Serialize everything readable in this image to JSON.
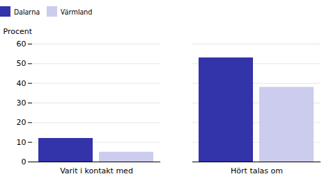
{
  "chart_data": {
    "type": "bar",
    "categories": [
      "Varit i kontakt med",
      "Hört talas om"
    ],
    "series": [
      {
        "name": "Dalarna",
        "color": "#3333AA",
        "values": [
          12,
          53
        ]
      },
      {
        "name": "Värmland",
        "color": "#CCCCEE",
        "values": [
          5,
          38
        ]
      }
    ],
    "ylabel": "Procent",
    "ylim": [
      0,
      60
    ],
    "yticks": [
      0,
      10,
      20,
      30,
      40,
      50,
      60
    ],
    "grid": true,
    "legend": "upper left"
  }
}
